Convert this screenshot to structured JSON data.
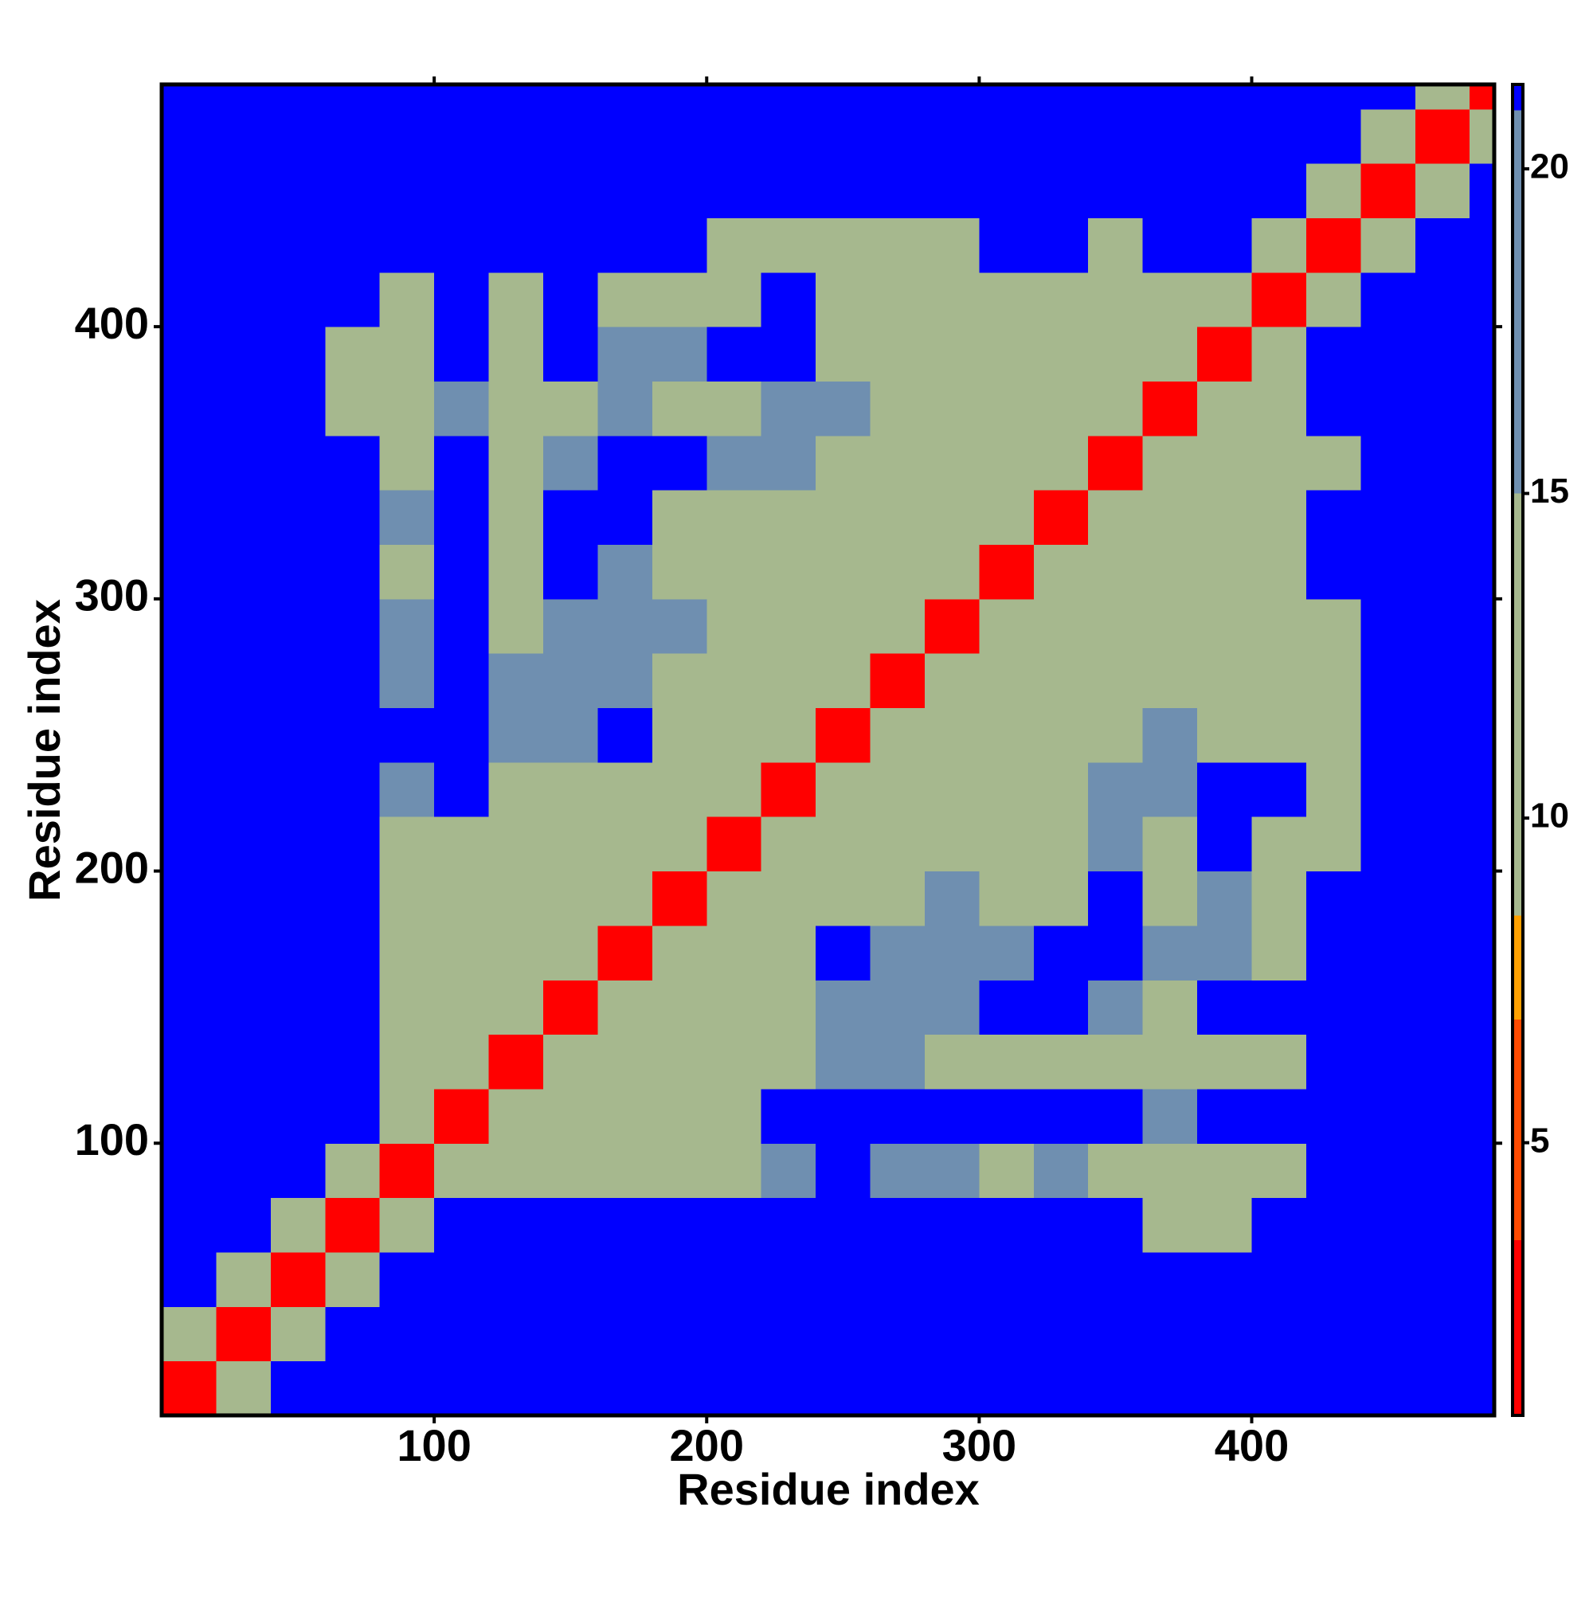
{
  "chart_data": {
    "type": "heatmap",
    "x_label": "Residue index",
    "y_label": "Residue index",
    "xlim": [
      0,
      489
    ],
    "ylim": [
      0,
      489
    ],
    "xticks": [
      100,
      200,
      300,
      400
    ],
    "yticks": [
      100,
      200,
      300,
      400
    ],
    "x_edges": [
      0,
      20,
      40,
      60,
      80,
      100,
      120,
      140,
      160,
      180,
      200,
      220,
      240,
      260,
      280,
      300,
      320,
      340,
      360,
      380,
      400,
      420,
      440,
      460,
      480,
      489
    ],
    "y_edges": [
      0,
      20,
      40,
      60,
      80,
      100,
      120,
      140,
      160,
      180,
      200,
      220,
      240,
      260,
      280,
      300,
      320,
      340,
      360,
      380,
      400,
      420,
      440,
      460,
      480,
      489
    ],
    "zlim": [
      0.8,
      21.3
    ],
    "zticks": [
      5,
      10,
      15,
      20
    ],
    "colorscale": [
      [
        3.5,
        "#ff0000"
      ],
      [
        6.9,
        "#ff4a00"
      ],
      [
        8.5,
        "#ffa000"
      ],
      [
        15,
        "#a6b88e"
      ],
      [
        20.9,
        "#6f8fb0"
      ],
      [
        21.3,
        "#0000ff"
      ]
    ],
    "z": [
      [
        3,
        14,
        21,
        21,
        21,
        21,
        21,
        21,
        21,
        21,
        21,
        21,
        21,
        21,
        21,
        21,
        21,
        21,
        21,
        21,
        21,
        21,
        21,
        21,
        21
      ],
      [
        14,
        3,
        14,
        21,
        21,
        21,
        21,
        21,
        21,
        21,
        21,
        21,
        21,
        21,
        21,
        21,
        21,
        21,
        21,
        21,
        21,
        21,
        21,
        21,
        21
      ],
      [
        21,
        14,
        3,
        14,
        21,
        21,
        21,
        21,
        21,
        21,
        21,
        21,
        21,
        21,
        21,
        21,
        21,
        21,
        21,
        21,
        21,
        21,
        21,
        21,
        21
      ],
      [
        21,
        21,
        14,
        3,
        12,
        21,
        21,
        21,
        21,
        21,
        21,
        21,
        21,
        21,
        21,
        21,
        21,
        21,
        14,
        14,
        21,
        21,
        21,
        21,
        21
      ],
      [
        21,
        21,
        21,
        12,
        3,
        11,
        11,
        12,
        13,
        12,
        15,
        16,
        21,
        16,
        16,
        15,
        17,
        14,
        12,
        12,
        14,
        21,
        21,
        21,
        21
      ],
      [
        21,
        21,
        21,
        21,
        11,
        3,
        11,
        12,
        12,
        13,
        15,
        21,
        21,
        21,
        21,
        21,
        21,
        21,
        16,
        21,
        21,
        21,
        21,
        21,
        21
      ],
      [
        21,
        21,
        21,
        21,
        11,
        11,
        3,
        11,
        11,
        12,
        14,
        13,
        16,
        16,
        15,
        15,
        14,
        14,
        12,
        14,
        13,
        21,
        21,
        21,
        21
      ],
      [
        21,
        21,
        21,
        21,
        12,
        12,
        11,
        3,
        10,
        12,
        13,
        12,
        16,
        16,
        17,
        21,
        21,
        16,
        15,
        21,
        21,
        21,
        21,
        21,
        21
      ],
      [
        21,
        21,
        21,
        21,
        13,
        12,
        11,
        10,
        3,
        10,
        12,
        14,
        21,
        17,
        16,
        17,
        21,
        21,
        16,
        16,
        13,
        21,
        21,
        21,
        21
      ],
      [
        21,
        21,
        21,
        21,
        12,
        13,
        12,
        12,
        10,
        3,
        10,
        11,
        14,
        15,
        16,
        15,
        15,
        21,
        14,
        16,
        13,
        21,
        21,
        21,
        21
      ],
      [
        21,
        21,
        21,
        21,
        15,
        15,
        14,
        13,
        12,
        10,
        3,
        10,
        12,
        12,
        13,
        12,
        14,
        16,
        14,
        21,
        13,
        14,
        21,
        21,
        21
      ],
      [
        21,
        21,
        21,
        21,
        16,
        21,
        13,
        12,
        14,
        11,
        10,
        3,
        10,
        11,
        12,
        13,
        14,
        16,
        16,
        21,
        21,
        14,
        21,
        21,
        21
      ],
      [
        21,
        21,
        21,
        21,
        21,
        21,
        16,
        16,
        21,
        14,
        12,
        10,
        3,
        10,
        11,
        12,
        13,
        14,
        16,
        15,
        13,
        13,
        21,
        21,
        21
      ],
      [
        21,
        21,
        21,
        21,
        16,
        21,
        16,
        16,
        17,
        15,
        12,
        11,
        10,
        3,
        10,
        12,
        12,
        13,
        15,
        14,
        13,
        14,
        21,
        21,
        21
      ],
      [
        21,
        21,
        21,
        21,
        16,
        21,
        15,
        17,
        16,
        16,
        13,
        12,
        11,
        10,
        3,
        10,
        11,
        12,
        14,
        15,
        13,
        14,
        21,
        21,
        21
      ],
      [
        21,
        21,
        21,
        21,
        15,
        21,
        15,
        21,
        17,
        15,
        12,
        13,
        12,
        12,
        10,
        3,
        10,
        11,
        12,
        13,
        13,
        21,
        21,
        21,
        21
      ],
      [
        21,
        21,
        21,
        21,
        17,
        21,
        14,
        21,
        21,
        15,
        14,
        14,
        13,
        12,
        11,
        10,
        3,
        10,
        11,
        12,
        13,
        21,
        21,
        21,
        21
      ],
      [
        21,
        21,
        21,
        21,
        14,
        21,
        14,
        16,
        21,
        21,
        16,
        16,
        14,
        13,
        12,
        11,
        10,
        3,
        10,
        11,
        12,
        15,
        21,
        21,
        21
      ],
      [
        21,
        21,
        21,
        14,
        12,
        16,
        12,
        15,
        16,
        14,
        14,
        16,
        16,
        15,
        14,
        12,
        11,
        10,
        3,
        10,
        12,
        21,
        21,
        21,
        21
      ],
      [
        21,
        21,
        21,
        14,
        12,
        21,
        14,
        21,
        16,
        16,
        21,
        21,
        15,
        14,
        15,
        13,
        12,
        11,
        10,
        3,
        10,
        21,
        21,
        21,
        21
      ],
      [
        21,
        21,
        21,
        21,
        14,
        21,
        13,
        21,
        13,
        13,
        13,
        21,
        13,
        13,
        13,
        13,
        13,
        12,
        12,
        10,
        3,
        11,
        21,
        21,
        21
      ],
      [
        21,
        21,
        21,
        21,
        21,
        21,
        21,
        21,
        21,
        21,
        14,
        14,
        13,
        14,
        14,
        21,
        21,
        15,
        21,
        21,
        11,
        3,
        13,
        21,
        21
      ],
      [
        21,
        21,
        21,
        21,
        21,
        21,
        21,
        21,
        21,
        21,
        21,
        21,
        21,
        21,
        21,
        21,
        21,
        21,
        21,
        21,
        21,
        13,
        3,
        14,
        21
      ],
      [
        21,
        21,
        21,
        21,
        21,
        21,
        21,
        21,
        21,
        21,
        21,
        21,
        21,
        21,
        21,
        21,
        21,
        21,
        21,
        21,
        21,
        21,
        14,
        3,
        14
      ],
      [
        21,
        21,
        21,
        21,
        21,
        21,
        21,
        21,
        21,
        21,
        21,
        21,
        21,
        21,
        21,
        21,
        21,
        21,
        21,
        21,
        21,
        21,
        21,
        14,
        3
      ]
    ]
  }
}
